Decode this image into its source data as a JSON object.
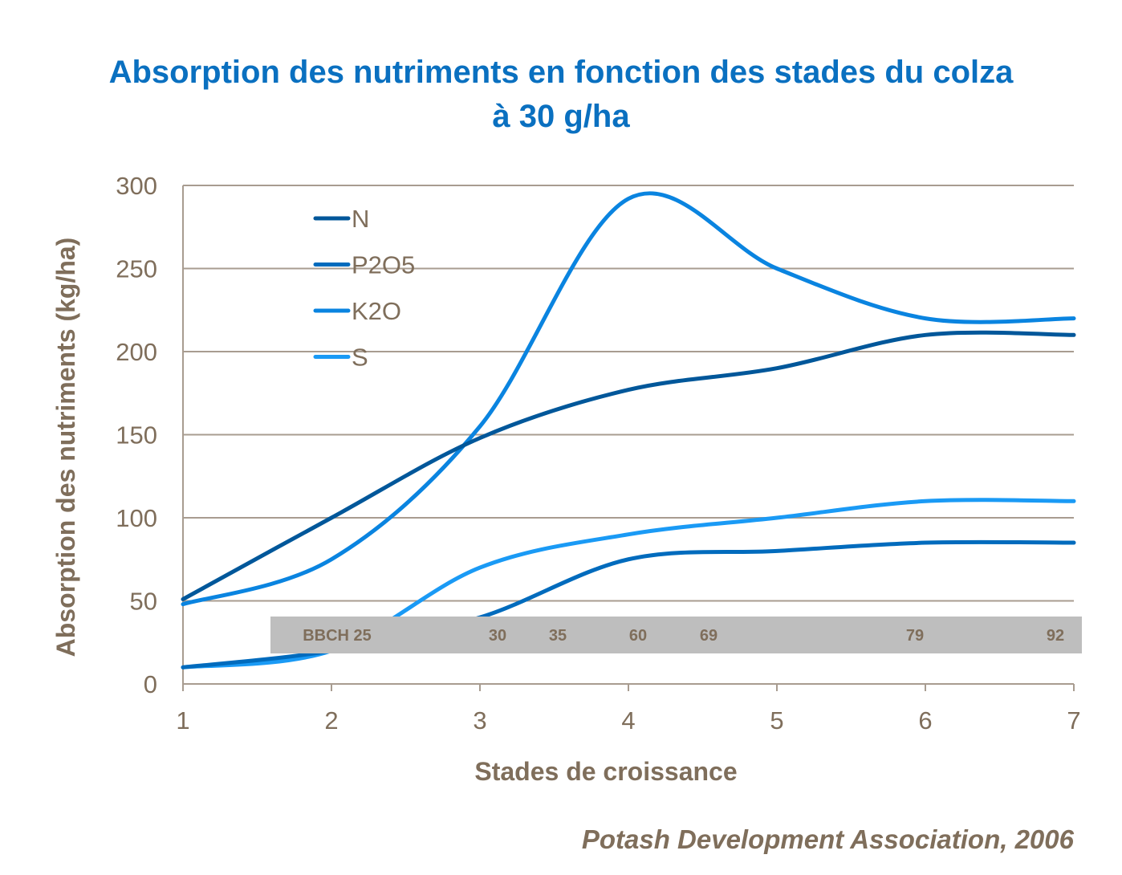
{
  "chart_data": {
    "type": "line",
    "title": "Absorption des nutriments en fonction des stades du colza",
    "subtitle": "à 30 g/ha",
    "xlabel": "Stades de croissance",
    "ylabel": "Absorption des nutriments (kg/ha)",
    "x": [
      1,
      2,
      3,
      4,
      5,
      6,
      7
    ],
    "xlim": [
      1,
      7
    ],
    "ylim": [
      0,
      300
    ],
    "yticks": [
      0,
      50,
      100,
      150,
      200,
      250,
      300
    ],
    "xticks": [
      1,
      2,
      3,
      4,
      5,
      6,
      7
    ],
    "grid": "horizontal",
    "legend": "top-left",
    "smooth": true,
    "series": [
      {
        "name": "N",
        "color": "#00579a",
        "values": [
          51,
          100,
          148,
          177,
          190,
          210,
          210
        ]
      },
      {
        "name": "P2O5",
        "color": "#006bbd",
        "values": [
          10,
          20,
          40,
          75,
          80,
          85,
          85
        ]
      },
      {
        "name": "K2O",
        "color": "#0a84e0",
        "values": [
          48,
          75,
          155,
          292,
          250,
          220,
          220
        ]
      },
      {
        "name": "S",
        "color": "#1a9af5",
        "values": [
          10,
          20,
          70,
          90,
          100,
          110,
          110
        ]
      }
    ],
    "bbch_stages": [
      "BBCH 25",
      "30",
      "35",
      "60",
      "69",
      "79",
      "92"
    ],
    "source": "Potash Development Association, 2006"
  }
}
